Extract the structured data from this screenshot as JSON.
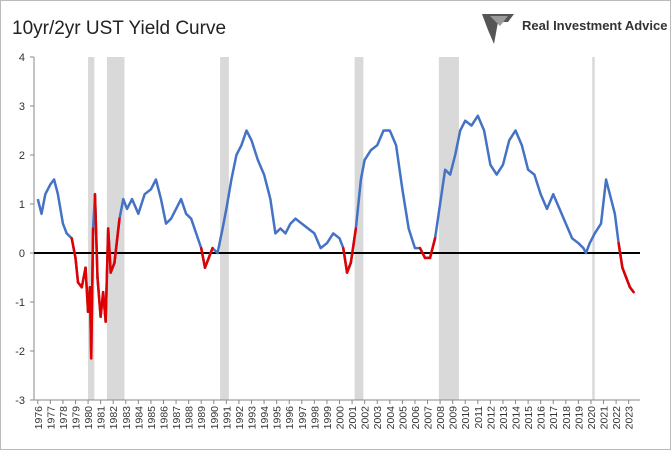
{
  "chart_data": {
    "type": "line",
    "title": "10yr/2yr UST Yield Curve",
    "brand": "Real Investment Advice",
    "x": [
      1976.0,
      1976.3,
      1976.6,
      1977.0,
      1977.3,
      1977.6,
      1978.0,
      1978.3,
      1978.7,
      1979.0,
      1979.2,
      1979.5,
      1979.8,
      1980.0,
      1980.15,
      1980.25,
      1980.4,
      1980.55,
      1980.75,
      1981.0,
      1981.2,
      1981.4,
      1981.6,
      1981.8,
      1982.1,
      1982.5,
      1982.8,
      1983.1,
      1983.5,
      1984.0,
      1984.5,
      1985.0,
      1985.4,
      1985.8,
      1986.2,
      1986.6,
      1987.0,
      1987.4,
      1987.8,
      1988.2,
      1988.6,
      1989.0,
      1989.3,
      1989.6,
      1989.9,
      1990.3,
      1990.7,
      1991.0,
      1991.4,
      1991.8,
      1992.2,
      1992.6,
      1993.0,
      1993.5,
      1994.0,
      1994.5,
      1994.9,
      1995.3,
      1995.7,
      1996.1,
      1996.5,
      1997.0,
      1997.5,
      1998.0,
      1998.5,
      1999.0,
      1999.5,
      2000.0,
      2000.3,
      2000.6,
      2000.9,
      2001.3,
      2001.7,
      2002.0,
      2002.5,
      2003.0,
      2003.5,
      2004.0,
      2004.5,
      2005.0,
      2005.5,
      2006.0,
      2006.4,
      2006.8,
      2007.2,
      2007.6,
      2008.0,
      2008.4,
      2008.8,
      2009.2,
      2009.6,
      2010.0,
      2010.5,
      2011.0,
      2011.5,
      2012.0,
      2012.5,
      2013.0,
      2013.5,
      2014.0,
      2014.5,
      2015.0,
      2015.5,
      2016.0,
      2016.5,
      2017.0,
      2017.5,
      2018.0,
      2018.5,
      2019.0,
      2019.4,
      2019.6,
      2019.9,
      2020.3,
      2020.8,
      2021.2,
      2021.5,
      2021.9,
      2022.2,
      2022.5,
      2022.8,
      2023.1,
      2023.4
    ],
    "series": [
      {
        "color": "#4472c4",
        "negative_color": "#e00000",
        "values": [
          1.1,
          0.8,
          1.2,
          1.4,
          1.5,
          1.2,
          0.6,
          0.4,
          0.3,
          -0.1,
          -0.6,
          -0.7,
          -0.3,
          -1.2,
          -0.7,
          -2.15,
          0.5,
          1.2,
          -0.5,
          -1.3,
          -0.8,
          -1.4,
          0.5,
          -0.4,
          -0.2,
          0.7,
          1.1,
          0.9,
          1.1,
          0.8,
          1.2,
          1.3,
          1.5,
          1.1,
          0.6,
          0.7,
          0.9,
          1.1,
          0.8,
          0.7,
          0.4,
          0.1,
          -0.3,
          -0.1,
          0.1,
          0.0,
          0.5,
          0.9,
          1.5,
          2.0,
          2.2,
          2.5,
          2.3,
          1.9,
          1.6,
          1.1,
          0.4,
          0.5,
          0.4,
          0.6,
          0.7,
          0.6,
          0.5,
          0.4,
          0.1,
          0.2,
          0.4,
          0.3,
          0.1,
          -0.4,
          -0.2,
          0.5,
          1.5,
          1.9,
          2.1,
          2.2,
          2.5,
          2.5,
          2.2,
          1.3,
          0.5,
          0.1,
          0.1,
          -0.1,
          -0.1,
          0.3,
          1.0,
          1.7,
          1.6,
          2.0,
          2.5,
          2.7,
          2.6,
          2.8,
          2.5,
          1.8,
          1.6,
          1.8,
          2.3,
          2.5,
          2.2,
          1.7,
          1.6,
          1.2,
          0.9,
          1.2,
          0.9,
          0.6,
          0.3,
          0.2,
          0.1,
          0.0,
          0.2,
          0.4,
          0.6,
          1.5,
          1.2,
          0.8,
          0.2,
          -0.3,
          -0.5,
          -0.7,
          -0.8
        ]
      }
    ],
    "recessions": [
      [
        1980.0,
        1980.5
      ],
      [
        1981.5,
        1982.9
      ],
      [
        1990.5,
        1991.2
      ],
      [
        2001.2,
        2001.9
      ],
      [
        2007.9,
        2009.5
      ],
      [
        2020.1,
        2020.3
      ]
    ],
    "recession_color": "#d9d9d9",
    "xlim": [
      1975.7,
      2023.9
    ],
    "xticks": [
      1976,
      1977,
      1978,
      1979,
      1980,
      1981,
      1982,
      1983,
      1984,
      1985,
      1986,
      1987,
      1988,
      1989,
      1990,
      1991,
      1992,
      1993,
      1994,
      1995,
      1996,
      1997,
      1998,
      1999,
      2000,
      2001,
      2002,
      2003,
      2004,
      2005,
      2006,
      2007,
      2008,
      2009,
      2010,
      2011,
      2012,
      2013,
      2014,
      2015,
      2016,
      2017,
      2018,
      2019,
      2020,
      2021,
      2022,
      2023
    ],
    "ylim": [
      -3,
      4
    ],
    "yticks": [
      -3,
      -2,
      -1,
      0,
      1,
      2,
      3,
      4
    ]
  }
}
